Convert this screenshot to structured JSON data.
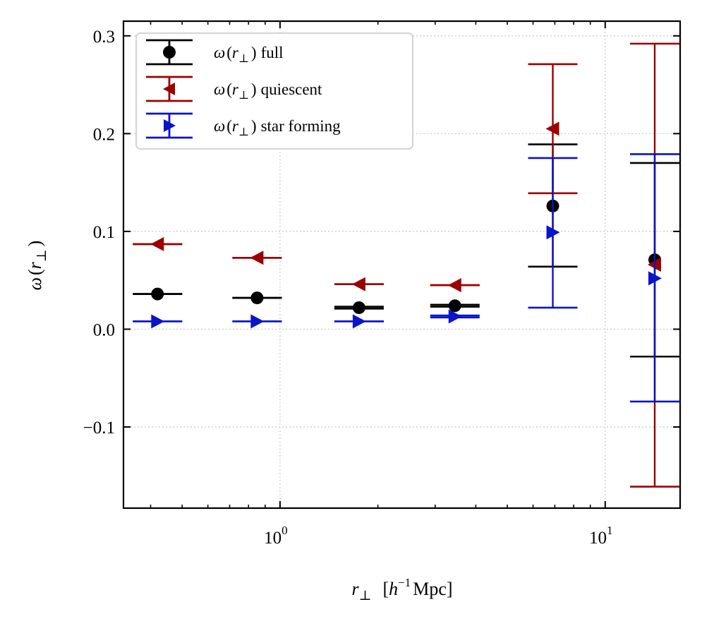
{
  "chart_data": {
    "type": "scatter",
    "xscale": "log",
    "xlim": [
      0.33,
      17.0
    ],
    "ylim": [
      -0.183,
      0.315
    ],
    "x_major_ticks": [
      {
        "value": 1,
        "base": "10",
        "exp": "0"
      },
      {
        "value": 10,
        "base": "10",
        "exp": "1"
      }
    ],
    "y_ticks": [
      {
        "value": 0.3,
        "label": "0.3"
      },
      {
        "value": 0.2,
        "label": "0.2"
      },
      {
        "value": 0.1,
        "label": "0.1"
      },
      {
        "value": 0.0,
        "label": "0.0"
      },
      {
        "value": -0.1,
        "label": "−0.1"
      }
    ],
    "grid": true,
    "legend_position": "upper-left",
    "xlabel": {
      "var": "r",
      "sub": "⊥",
      "bracket_open": "[",
      "h": "h",
      "sup": "−1",
      "unit": "Mpc]"
    },
    "ylabel": {
      "var": "ω",
      "open": "(",
      "r": "r",
      "sub": "⊥",
      "close": ")"
    },
    "series": [
      {
        "name": "full",
        "legend": {
          "prefix": "ω",
          "open": "(",
          "r": "r",
          "sub": "⊥",
          "close": ")",
          "suffix": "full"
        },
        "color": "#000000",
        "marker": "circle",
        "points": [
          {
            "x": 0.42,
            "y": 0.036,
            "ylo": 0.036,
            "yhi": 0.036
          },
          {
            "x": 0.85,
            "y": 0.032,
            "ylo": 0.032,
            "yhi": 0.032
          },
          {
            "x": 1.75,
            "y": 0.022,
            "ylo": 0.021,
            "yhi": 0.023
          },
          {
            "x": 3.45,
            "y": 0.024,
            "ylo": 0.023,
            "yhi": 0.025
          },
          {
            "x": 6.9,
            "y": 0.126,
            "ylo": 0.064,
            "yhi": 0.189
          },
          {
            "x": 14.2,
            "y": 0.071,
            "ylo": -0.028,
            "yhi": 0.17
          }
        ]
      },
      {
        "name": "quiescent",
        "legend": {
          "prefix": "ω",
          "open": "(",
          "r": "r",
          "sub": "⊥",
          "close": ")",
          "suffix": "quiescent"
        },
        "color": "#9b0000",
        "marker": "triangle-left",
        "points": [
          {
            "x": 0.42,
            "y": 0.087,
            "ylo": 0.087,
            "yhi": 0.087
          },
          {
            "x": 0.85,
            "y": 0.073,
            "ylo": 0.073,
            "yhi": 0.073
          },
          {
            "x": 1.75,
            "y": 0.046,
            "ylo": 0.046,
            "yhi": 0.046
          },
          {
            "x": 3.45,
            "y": 0.045,
            "ylo": 0.045,
            "yhi": 0.045
          },
          {
            "x": 6.9,
            "y": 0.205,
            "ylo": 0.139,
            "yhi": 0.271
          },
          {
            "x": 14.2,
            "y": 0.066,
            "ylo": -0.161,
            "yhi": 0.292
          }
        ]
      },
      {
        "name": "star forming",
        "legend": {
          "prefix": "ω",
          "open": "(",
          "r": "r",
          "sub": "⊥",
          "close": ")",
          "suffix": "star forming"
        },
        "color": "#0a14c8",
        "marker": "triangle-right",
        "points": [
          {
            "x": 0.42,
            "y": 0.008,
            "ylo": 0.008,
            "yhi": 0.008
          },
          {
            "x": 0.85,
            "y": 0.008,
            "ylo": 0.008,
            "yhi": 0.008
          },
          {
            "x": 1.75,
            "y": 0.008,
            "ylo": 0.008,
            "yhi": 0.008
          },
          {
            "x": 3.45,
            "y": 0.013,
            "ylo": 0.012,
            "yhi": 0.014
          },
          {
            "x": 6.9,
            "y": 0.099,
            "ylo": 0.022,
            "yhi": 0.175
          },
          {
            "x": 14.2,
            "y": 0.052,
            "ylo": -0.074,
            "yhi": 0.179
          }
        ]
      }
    ]
  }
}
